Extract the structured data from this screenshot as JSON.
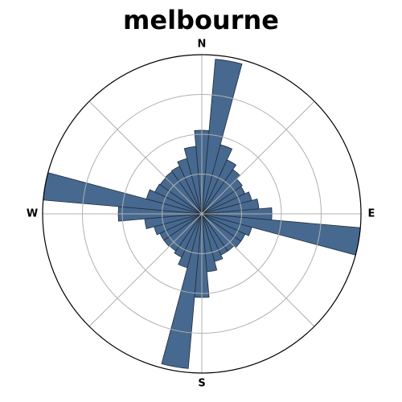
{
  "chart_data": {
    "type": "polar-bar",
    "title": "melbourne",
    "direction_labels": [
      "N",
      "E",
      "S",
      "W"
    ],
    "bin_count": 36,
    "bin_width_deg": 10,
    "theta_zero": "north",
    "theta_direction": "clockwise",
    "radial_max": 200,
    "radial_gridlines": [
      50,
      100,
      150
    ],
    "angular_gridline_step_deg": 45,
    "grid": true,
    "bar_color": "#47698f",
    "bar_edge_color": "#1f2d3d",
    "bin_centers_deg": [
      0,
      10,
      20,
      30,
      40,
      50,
      60,
      70,
      80,
      90,
      100,
      110,
      120,
      130,
      140,
      150,
      160,
      170,
      180,
      190,
      200,
      210,
      220,
      230,
      240,
      250,
      260,
      270,
      280,
      290,
      300,
      310,
      320,
      330,
      340,
      350
    ],
    "values": [
      105,
      195,
      90,
      75,
      68,
      62,
      60,
      65,
      72,
      88,
      200,
      65,
      60,
      60,
      57,
      57,
      62,
      73,
      105,
      195,
      70,
      60,
      57,
      58,
      58,
      62,
      72,
      105,
      200,
      72,
      65,
      64,
      65,
      66,
      72,
      85
    ]
  }
}
